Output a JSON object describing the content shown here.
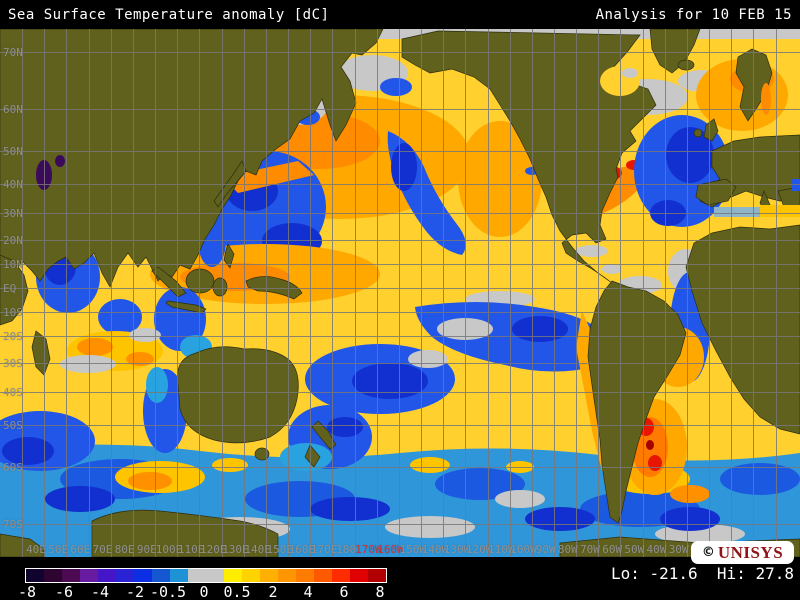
{
  "header": {
    "title": "Sea Surface Temperature anomaly [dC]",
    "analysis_date": "Analysis for 10 FEB 15"
  },
  "map": {
    "lat_labels": [
      "70N",
      "60N",
      "50N",
      "40N",
      "30N",
      "20N",
      "10N",
      "EQ",
      "10S",
      "20S",
      "30S",
      "40S",
      "50S",
      "60S",
      "70S"
    ],
    "lon_labels": [
      "40E",
      "50E",
      "60E",
      "70E",
      "80E",
      "90E",
      "100E",
      "110E",
      "120E",
      "130E",
      "140E",
      "150E",
      "160E",
      "170E",
      "180",
      "170W",
      "160W",
      "150W",
      "140W",
      "130W",
      "120W",
      "110W",
      "100W",
      "90W",
      "80W",
      "70W",
      "60W",
      "50W",
      "40W",
      "30W",
      "20W",
      "10W"
    ],
    "lon_red_indices": [
      15,
      16
    ]
  },
  "colorbar": {
    "tick_labels": [
      "-8",
      "-6",
      "-4",
      "-2",
      "-0.5",
      "0",
      "0.5",
      "2",
      "4",
      "6",
      "8"
    ],
    "colors": [
      "#10032e",
      "#2e0430",
      "#4c0a52",
      "#661ba0",
      "#4416c8",
      "#2a23d6",
      "#0c2fe4",
      "#1457d0",
      "#1d93d6",
      "#c8c8c8",
      "#c8c8c8",
      "#ffee00",
      "#ffd300",
      "#ffb000",
      "#ff9600",
      "#ff7c00",
      "#ff5900",
      "#ff2c00",
      "#e00000",
      "#b20000"
    ],
    "units": "dC"
  },
  "footer": {
    "lo_label": "Lo:",
    "lo_value": "-21.6",
    "hi_label": "Hi:",
    "hi_value": "27.8"
  },
  "logo": {
    "copyright": "©",
    "name": "UNISYS",
    "color": "#8e1418"
  }
}
